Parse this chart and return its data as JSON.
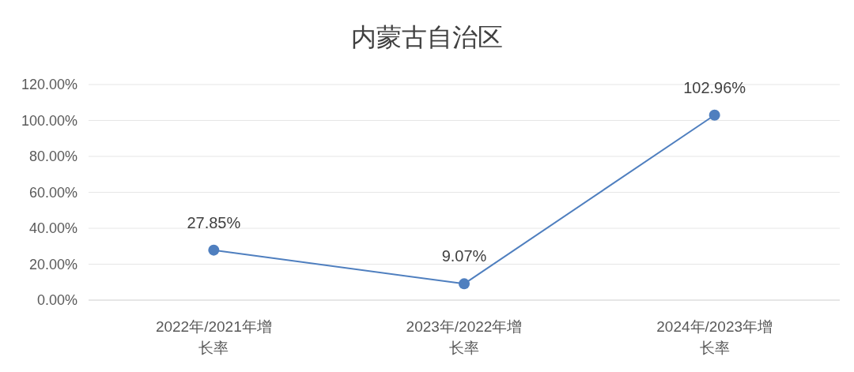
{
  "chart_data": {
    "type": "line",
    "title": "内蒙古自治区",
    "categories": [
      "2022年/2021年增长率",
      "2023年/2022年增长率",
      "2024年/2023年增长率"
    ],
    "series": [
      {
        "color": "#4f7fbf",
        "values": [
          27.85,
          9.07,
          102.96
        ],
        "value_labels": [
          "27.85%",
          "9.07%",
          "102.96%"
        ]
      }
    ],
    "ylim": [
      0,
      120
    ],
    "yticks": [
      {
        "value": 0,
        "label": "0.00%"
      },
      {
        "value": 20,
        "label": "20.00%"
      },
      {
        "value": 40,
        "label": "40.00%"
      },
      {
        "value": 60,
        "label": "60.00%"
      },
      {
        "value": 80,
        "label": "80.00%"
      },
      {
        "value": 100,
        "label": "100.00%"
      },
      {
        "value": 120,
        "label": "120.00%"
      }
    ],
    "grid": "y",
    "marker": "circle",
    "line_style": "solid"
  }
}
